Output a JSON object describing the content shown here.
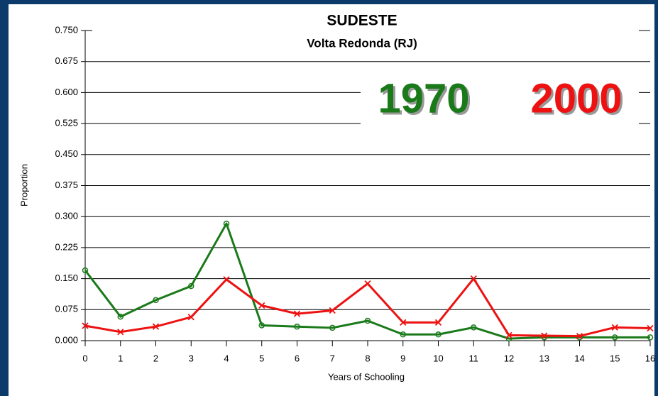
{
  "chart_data": {
    "type": "line",
    "title": "SUDESTE",
    "subtitle": "Volta Redonda (RJ)",
    "x_label": "Years of Schooling",
    "y_label": "Proportion",
    "x": [
      0,
      1,
      2,
      3,
      4,
      5,
      6,
      7,
      8,
      9,
      10,
      11,
      12,
      13,
      14,
      15,
      16
    ],
    "xlim": [
      0,
      16
    ],
    "xticks": [
      0,
      1,
      2,
      3,
      4,
      5,
      6,
      7,
      8,
      9,
      10,
      11,
      12,
      13,
      14,
      15,
      16
    ],
    "ylim": [
      0,
      0.75
    ],
    "yticks": [
      {
        "value": 0,
        "label": "0.000"
      },
      {
        "value": 0.075,
        "label": "0.075"
      },
      {
        "value": 0.15,
        "label": "0.150"
      },
      {
        "value": 0.225,
        "label": "0.225"
      },
      {
        "value": 0.3,
        "label": "0.300"
      },
      {
        "value": 0.375,
        "label": "0.375"
      },
      {
        "value": 0.45,
        "label": "0.450"
      },
      {
        "value": 0.525,
        "label": "0.525"
      },
      {
        "value": 0.6,
        "label": "0.600"
      },
      {
        "value": 0.675,
        "label": "0.675"
      },
      {
        "value": 0.75,
        "label": "0.750"
      }
    ],
    "grid": true,
    "series": [
      {
        "name": "1970",
        "color": "#1a7a1a",
        "marker": "circle",
        "values": [
          0.17,
          0.058,
          0.098,
          0.132,
          0.283,
          0.037,
          0.034,
          0.031,
          0.048,
          0.015,
          0.015,
          0.032,
          0.005,
          0.008,
          0.008,
          0.008,
          0.008
        ]
      },
      {
        "name": "2000",
        "color": "#ee1111",
        "marker": "x",
        "values": [
          0.036,
          0.021,
          0.034,
          0.057,
          0.148,
          0.085,
          0.065,
          0.073,
          0.138,
          0.044,
          0.044,
          0.15,
          0.013,
          0.012,
          0.011,
          0.032,
          0.03
        ]
      }
    ]
  }
}
